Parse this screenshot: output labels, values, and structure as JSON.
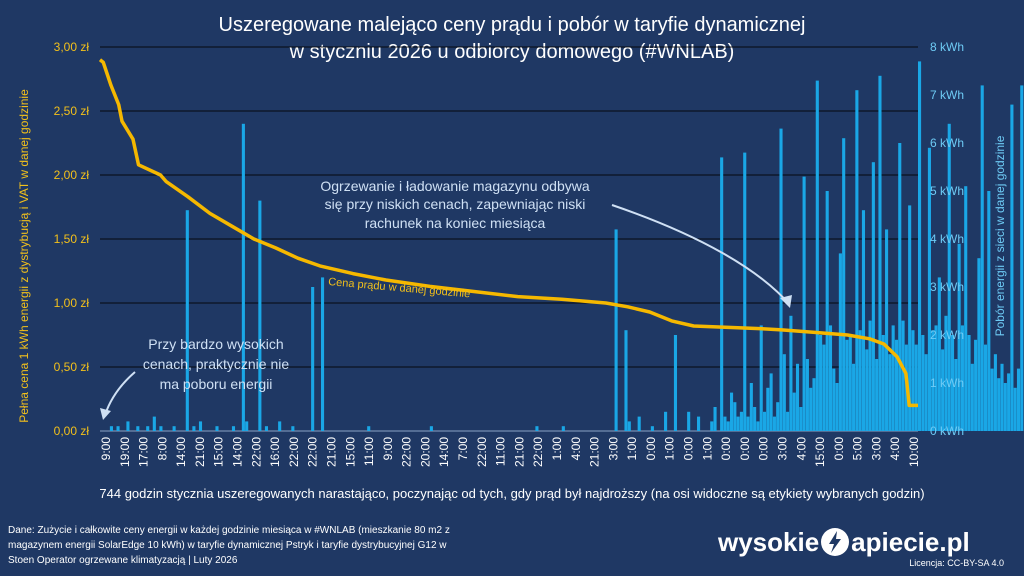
{
  "title": {
    "line1": "Uszeregowane malejąco ceny prądu i pobór w taryfie dynamicznej",
    "line2": "w styczniu 2026 u odbiorcy domowego (#WNLAB)"
  },
  "chart_data": {
    "type": "bar",
    "series_line": {
      "name": "Cena prądu w danej godzinie",
      "color": "#f5b800",
      "axis": "left",
      "hours": [
        0,
        3,
        10,
        17,
        20,
        30,
        35,
        55,
        60,
        80,
        100,
        120,
        140,
        160,
        180,
        200,
        230,
        260,
        300,
        340,
        380,
        420,
        460,
        480,
        500,
        520,
        540,
        600,
        620,
        650,
        680,
        700,
        713,
        725,
        733,
        736,
        744
      ],
      "values": [
        2.9,
        2.88,
        2.7,
        2.55,
        2.42,
        2.28,
        2.08,
        2.0,
        1.95,
        1.83,
        1.7,
        1.6,
        1.5,
        1.43,
        1.35,
        1.29,
        1.23,
        1.18,
        1.13,
        1.09,
        1.05,
        1.03,
        1.0,
        0.97,
        0.93,
        0.86,
        0.82,
        0.8,
        0.79,
        0.77,
        0.75,
        0.72,
        0.68,
        0.58,
        0.45,
        0.2,
        0.2
      ]
    },
    "series_bars": {
      "name": "Pobór energii z sieci w danej godzinie",
      "color": "#1aa7e6",
      "axis": "right",
      "unit": "kWh",
      "sample_step": 3,
      "values": [
        0.0,
        0.0,
        0.0,
        0.1,
        0.0,
        0.1,
        0.0,
        0.0,
        0.2,
        0.0,
        0.0,
        0.1,
        0.0,
        0.0,
        0.1,
        0.0,
        0.3,
        0.0,
        0.1,
        0.0,
        0.0,
        0.0,
        0.1,
        0.0,
        0.0,
        0.0,
        4.6,
        0.0,
        0.1,
        0.0,
        0.2,
        0.0,
        0.0,
        0.0,
        0.0,
        0.1,
        0.0,
        0.0,
        0.0,
        0.0,
        0.1,
        0.0,
        0.0,
        6.4,
        0.2,
        0.0,
        0.0,
        0.0,
        4.8,
        0.0,
        0.1,
        0.0,
        0.0,
        0.0,
        0.2,
        0.0,
        0.0,
        0.0,
        0.1,
        0.0,
        0.0,
        0.0,
        0.0,
        0.0,
        3.0,
        0.0,
        0.0,
        3.2,
        0.0,
        0.0,
        0.0,
        0.0,
        0.0,
        0.0,
        0.0,
        0.0,
        0.0,
        0.0,
        0.0,
        0.0,
        0.0,
        0.1,
        0.0,
        0.0,
        0.0,
        0.0,
        0.0,
        0.0,
        0.0,
        0.0,
        0.0,
        0.0,
        0.0,
        0.0,
        0.0,
        0.0,
        0.0,
        0.0,
        0.0,
        0.0,
        0.1,
        0.0,
        0.0,
        0.0,
        0.0,
        0.0,
        0.0,
        0.0,
        0.0,
        0.0,
        0.0,
        0.0,
        0.0,
        0.0,
        0.0,
        0.0,
        0.0,
        0.0,
        0.0,
        0.0,
        0.0,
        0.0,
        0.0,
        0.0,
        0.0,
        0.0,
        0.0,
        0.0,
        0.0,
        0.0,
        0.0,
        0.0,
        0.1,
        0.0,
        0.0,
        0.0,
        0.0,
        0.0,
        0.0,
        0.0,
        0.1,
        0.0,
        0.0,
        0.0,
        0.0,
        0.0,
        0.0,
        0.0,
        0.0,
        0.0,
        0.0,
        0.0,
        0.0,
        0.0,
        0.0,
        0.0,
        4.2,
        0.0,
        0.0,
        2.1,
        0.2,
        0.0,
        0.0,
        0.3,
        0.0,
        0.0,
        0.0,
        0.1,
        0.0,
        0.0,
        0.0,
        0.4,
        0.0,
        0.0,
        2.0,
        0.0,
        0.0,
        0.0,
        0.4,
        0.0,
        0.0,
        0.3,
        0.0,
        0.0,
        0.0,
        0.2,
        0.5,
        0.0,
        5.7,
        0.3,
        0.2,
        0.8,
        0.6,
        0.3,
        0.4,
        5.8,
        0.3,
        1.0,
        0.5,
        0.2,
        2.2,
        0.4,
        0.9,
        1.2,
        0.3,
        0.6,
        6.3,
        1.6,
        0.4,
        2.4,
        0.8,
        1.4,
        0.5,
        5.3,
        1.5,
        0.9,
        1.1,
        7.3,
        2.0,
        1.8,
        5.0,
        2.2,
        1.3,
        1.0,
        3.7,
        6.1,
        1.9,
        2.0,
        1.4,
        7.1,
        2.1,
        4.6,
        1.7,
        2.3,
        5.6,
        1.5,
        7.4,
        2.0,
        4.2,
        1.6,
        2.2,
        1.9,
        6.0,
        2.3,
        1.8,
        4.7,
        2.1,
        1.8,
        7.7,
        2.0,
        1.6,
        5.9,
        2.1,
        2.2,
        3.2,
        1.7,
        2.4,
        6.4,
        2.0,
        1.5,
        3.9,
        2.2,
        5.1,
        2.0,
        1.4,
        1.9,
        3.6,
        7.2,
        1.8,
        5.0,
        1.3,
        1.6,
        1.1,
        1.4,
        1.0,
        1.2,
        6.8,
        0.9,
        1.3,
        7.2
      ],
      "ylim": [
        0,
        8
      ]
    },
    "ylim_left": [
      0,
      3
    ],
    "y_ticks_left": [
      "0,00 zł",
      "0,50 zł",
      "1,00 zł",
      "1,50 zł",
      "2,00 zł",
      "2,50 zł",
      "3,00 zł"
    ],
    "y_ticks_right": [
      "0 kWh",
      "1 kWh",
      "2 kWh",
      "3 kWh",
      "4 kWh",
      "5 kWh",
      "6 kWh",
      "7 kWh",
      "8 kWh"
    ],
    "x_ticks": [
      "9:00",
      "19:00",
      "17:00",
      "8:00",
      "14:00",
      "21:00",
      "15:00",
      "14:00",
      "22:00",
      "16:00",
      "22:00",
      "22:00",
      "21:00",
      "15:00",
      "11:00",
      "9:00",
      "22:00",
      "20:00",
      "14:00",
      "7:00",
      "22:00",
      "11:00",
      "21:00",
      "22:00",
      "1:00",
      "4:00",
      "21:00",
      "3:00",
      "1:00",
      "0:00",
      "1:00",
      "0:00",
      "1:00",
      "0:00",
      "0:00",
      "0:00",
      "3:00",
      "4:00",
      "15:00",
      "0:00",
      "5:00",
      "3:00",
      "4:00",
      "10:00"
    ],
    "ylabel_left": "Pełna cena 1 kWh energii z dystrybucją i VAT w danej godzinie",
    "ylabel_right": "Pobór energii z sieci w danej godzinie",
    "xlabel": "744 godzin stycznia uszeregowanych narastająco, poczynając od tych, gdy prąd był najdroższy (na osi widoczne są etykiety wybranych godzin)",
    "grid": true,
    "annotations": [
      {
        "lines": [
          "Ogrzewanie i ładowanie magazynu odbywa",
          "się przy niskich cenach, zapewniając niski",
          "rachunek na koniec miesiąca"
        ]
      },
      {
        "lines": [
          "Przy bardzo wysokich",
          "cenach, praktycznie nie",
          "ma poboru energii"
        ]
      }
    ]
  },
  "footer": {
    "source": "Dane: Zużycie i całkowite ceny energii w każdej godzinie miesiąca w #WNLAB (mieszkanie 80 m2 z magazynem energii SolarEdge 10 kWh) w taryfie dynamicznej Pstryk i taryfie dystrybucyjnej G12 w Stoen Operator ogrzewane klimatyzacją   |   Luty 2026",
    "logo_left": "wysokie",
    "logo_right": "apiecie.pl",
    "license": "Licencja: CC-BY-SA 4.0"
  }
}
